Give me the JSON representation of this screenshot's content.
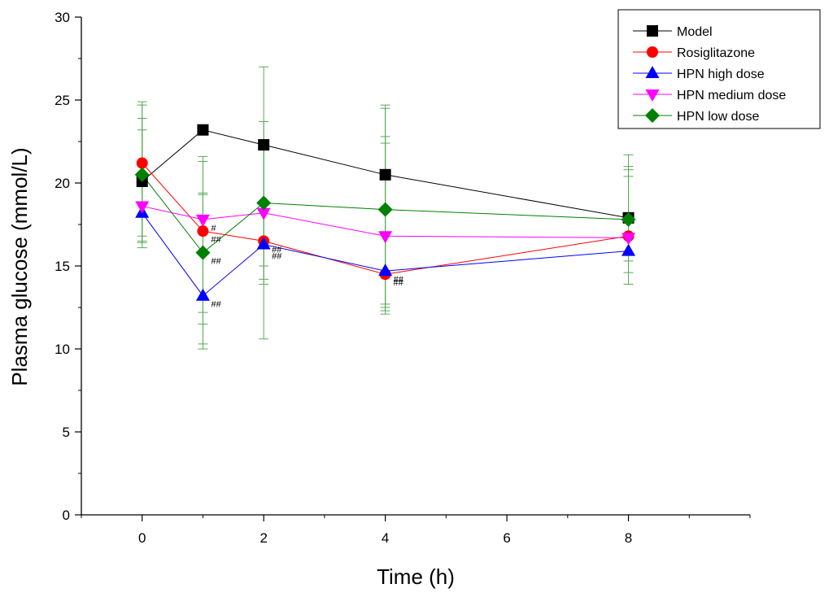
{
  "chart_data": {
    "type": "line",
    "title": "",
    "xlabel": "Time (h)",
    "ylabel": "Plasma glucose (mmol/L)",
    "xlim": [
      -1,
      10
    ],
    "ylim": [
      0,
      30
    ],
    "x_ticks": [
      0,
      2,
      4,
      6,
      8
    ],
    "x_tick_labels": [
      "0",
      "2",
      "4",
      "6",
      "8"
    ],
    "y_ticks": [
      0,
      5,
      10,
      15,
      20,
      25,
      30
    ],
    "y_tick_labels": [
      "0",
      "5",
      "10",
      "15",
      "20",
      "25",
      "30"
    ],
    "legend_position": "top-right",
    "x": [
      0,
      1,
      2,
      4,
      8
    ],
    "series": [
      {
        "name": "Model",
        "color": "#000000",
        "marker": "square",
        "values": [
          20.1,
          23.2,
          22.3,
          20.5,
          17.9
        ]
      },
      {
        "name": "Rosiglitazone",
        "color": "#ff0000",
        "marker": "circle",
        "values": [
          21.2,
          17.1,
          16.5,
          14.5,
          16.8
        ]
      },
      {
        "name": "HPN high dose",
        "color": "#0000ff",
        "marker": "triangle-up",
        "values": [
          18.2,
          13.2,
          16.3,
          14.7,
          15.9
        ]
      },
      {
        "name": "HPN medium dose",
        "color": "#ff00ff",
        "marker": "triangle-down",
        "values": [
          18.6,
          17.8,
          18.2,
          16.8,
          16.7
        ]
      },
      {
        "name": "HPN low dose",
        "color": "#008000",
        "marker": "diamond",
        "values": [
          20.5,
          15.8,
          18.8,
          18.4,
          17.8
        ]
      }
    ],
    "error_bars": {
      "color": "#5aaa5a",
      "bars": [
        {
          "x": 0,
          "low": 16.1,
          "high": 24.9
        },
        {
          "x": 0,
          "low": 16.4,
          "high": 24.7
        },
        {
          "x": 0,
          "low": 16.5,
          "high": 23.9
        },
        {
          "x": 0,
          "low": 16.8,
          "high": 23.2
        },
        {
          "x": 1,
          "low": 10.0,
          "high": 21.6
        },
        {
          "x": 1,
          "low": 10.3,
          "high": 21.3
        },
        {
          "x": 1,
          "low": 11.5,
          "high": 19.4
        },
        {
          "x": 1,
          "low": 12.2,
          "high": 19.3
        },
        {
          "x": 2,
          "low": 10.6,
          "high": 27.0
        },
        {
          "x": 2,
          "low": 13.9,
          "high": 23.7
        },
        {
          "x": 2,
          "low": 14.2,
          "high": 22.5
        },
        {
          "x": 2,
          "low": 15.0,
          "high": 22.2
        },
        {
          "x": 4,
          "low": 12.1,
          "high": 24.7
        },
        {
          "x": 4,
          "low": 12.3,
          "high": 24.5
        },
        {
          "x": 4,
          "low": 12.5,
          "high": 22.8
        },
        {
          "x": 4,
          "low": 12.7,
          "high": 22.4
        },
        {
          "x": 8,
          "low": 13.9,
          "high": 21.7
        },
        {
          "x": 8,
          "low": 14.6,
          "high": 21.0
        },
        {
          "x": 8,
          "low": 15.3,
          "high": 20.8
        },
        {
          "x": 8,
          "low": 15.8,
          "high": 20.4
        }
      ]
    },
    "annotations": [
      {
        "text": "#",
        "x": 1,
        "y": 17.8
      },
      {
        "text": "##",
        "x": 1,
        "y": 17.1
      },
      {
        "text": "##",
        "x": 1,
        "y": 15.8
      },
      {
        "text": "##",
        "x": 1,
        "y": 13.2
      },
      {
        "text": "##",
        "x": 2,
        "y": 16.5
      },
      {
        "text": "##",
        "x": 2,
        "y": 16.1
      },
      {
        "text": "##",
        "x": 4,
        "y": 14.7
      },
      {
        "text": "##",
        "x": 4,
        "y": 14.5
      }
    ]
  }
}
